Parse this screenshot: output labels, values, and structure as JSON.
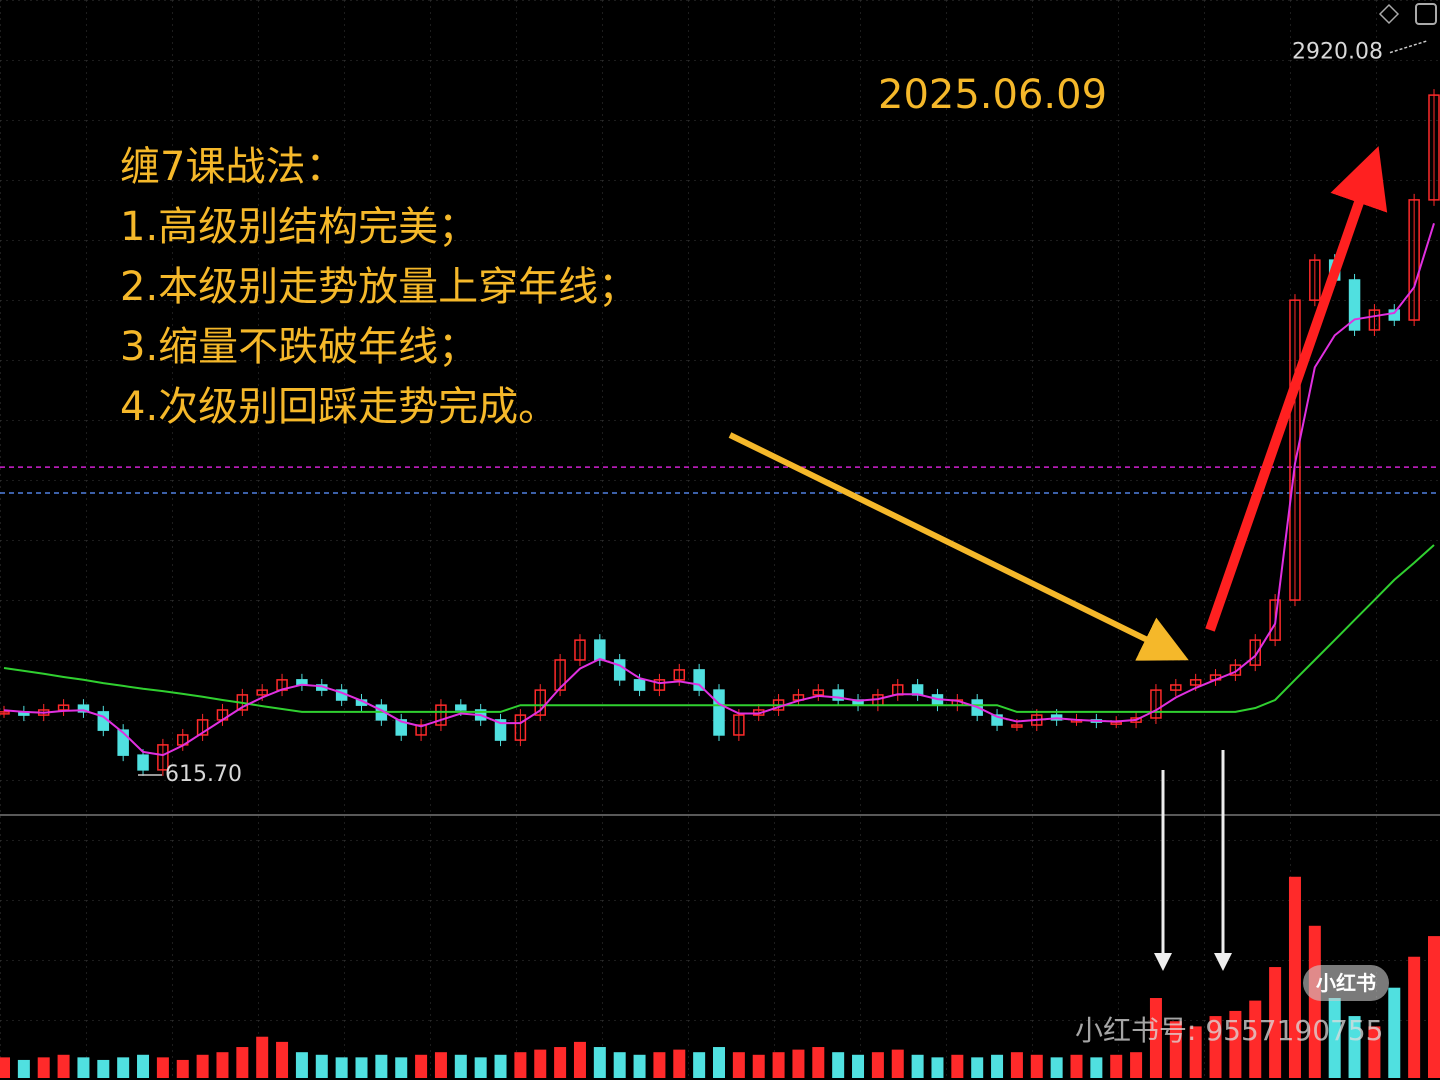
{
  "chart_data": {
    "type": "candlestick",
    "title_lines": [
      "缠7课战法：",
      "1.高级别结构完美；",
      "2.本级别走势放量上穿年线；",
      "3.缩量不跌破年线；",
      "4.次级别回踩走势完成。"
    ],
    "date_label": "2025.06.09",
    "watermark": "小红书号: 9557190755",
    "logo": "小红书",
    "ylim": [
      550,
      3000
    ],
    "min_label": {
      "value": 615.7,
      "label": "615.70"
    },
    "max_label": {
      "value": 2920.08,
      "label": "2920.08"
    },
    "reference_lines": [
      {
        "value": 1589,
        "color": "#d020d0"
      },
      {
        "value": 1508,
        "color": "#5080e0"
      }
    ],
    "up_color": "#ff2a2a",
    "down_color": "#50e0e0",
    "values": [
      825,
      815,
      831,
      846,
      825,
      768,
      690,
      644,
      722,
      753,
      800,
      831,
      878,
      893,
      925,
      909,
      893,
      862,
      846,
      800,
      753,
      784,
      846,
      831,
      800,
      737,
      815,
      893,
      987,
      1049,
      987,
      925,
      893,
      925,
      956,
      893,
      753,
      815,
      831,
      862,
      878,
      893,
      862,
      846,
      878,
      909,
      878,
      846,
      862,
      815,
      784,
      784,
      815,
      800,
      800,
      793,
      793,
      806,
      893,
      909,
      925,
      940,
      971,
      1049,
      1174,
      2110,
      2235,
      2173,
      2017,
      2079,
      2048,
      2423,
      2750
    ],
    "series": [
      {
        "color": "#30d030",
        "values": [
          962,
          953,
          944,
          934,
          925,
          915,
          906,
          897,
          890,
          881,
          872,
          862,
          853,
          843,
          834,
          825,
          825,
          825,
          825,
          825,
          825,
          825,
          825,
          825,
          825,
          825,
          846,
          846,
          846,
          846,
          846,
          846,
          846,
          846,
          846,
          846,
          846,
          846,
          846,
          846,
          846,
          846,
          846,
          846,
          846,
          846,
          846,
          846,
          846,
          846,
          846,
          825,
          825,
          825,
          825,
          825,
          825,
          825,
          825,
          825,
          825,
          825,
          825,
          837,
          862,
          925,
          987,
          1049,
          1112,
          1174,
          1237,
          1290,
          1346
        ]
      },
      {
        "color": "#e030e0",
        "values": [
          830,
          825,
          822,
          828,
          830,
          810,
          760,
          700,
          690,
          720,
          760,
          800,
          840,
          870,
          895,
          910,
          905,
          885,
          860,
          830,
          795,
          780,
          800,
          820,
          815,
          790,
          790,
          830,
          900,
          960,
          990,
          970,
          930,
          915,
          920,
          910,
          850,
          820,
          820,
          840,
          860,
          875,
          870,
          860,
          865,
          880,
          880,
          865,
          860,
          840,
          810,
          795,
          800,
          805,
          800,
          797,
          795,
          800,
          830,
          870,
          900,
          925,
          950,
          1000,
          1100,
          1600,
          1900,
          2000,
          2050,
          2060,
          2070,
          2150,
          2350
        ]
      }
    ],
    "volume_ylim": [
      0,
      100
    ],
    "volume": [
      8,
      7,
      8,
      9,
      8,
      7,
      8,
      9,
      8,
      7,
      9,
      10,
      12,
      16,
      14,
      10,
      9,
      8,
      8,
      9,
      8,
      9,
      10,
      9,
      8,
      9,
      10,
      11,
      12,
      14,
      12,
      10,
      9,
      10,
      11,
      10,
      12,
      10,
      9,
      10,
      11,
      12,
      10,
      9,
      10,
      11,
      9,
      8,
      9,
      8,
      9,
      10,
      9,
      8,
      9,
      8,
      9,
      10,
      31,
      22,
      20,
      24,
      26,
      30,
      43,
      78,
      59,
      31,
      24,
      20,
      35,
      47,
      55
    ]
  }
}
